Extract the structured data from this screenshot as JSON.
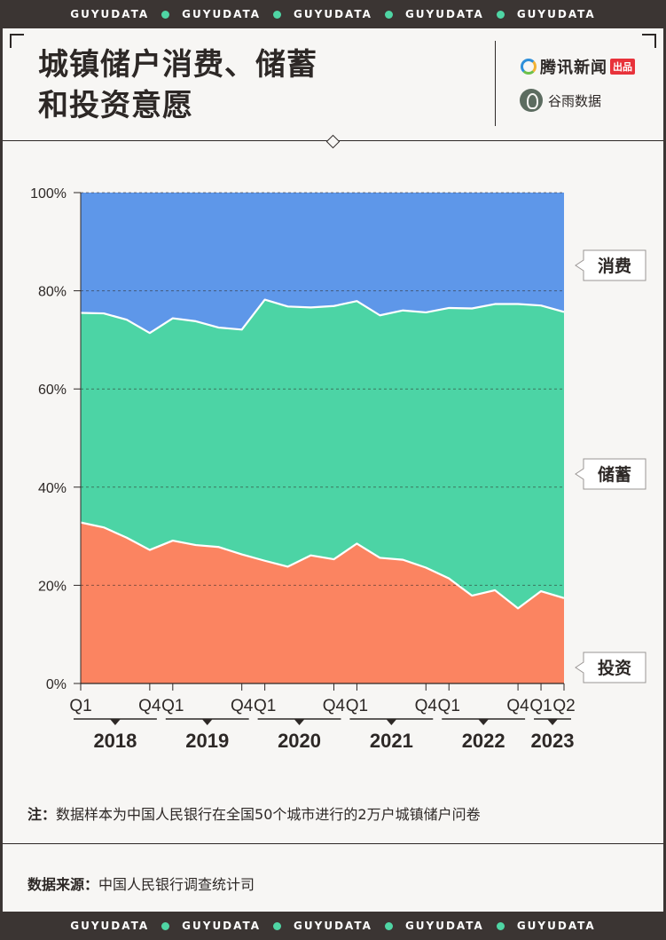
{
  "brand_band": "GUYUDATA",
  "title_lines": [
    "城镇储户消费、储蓄",
    "和投资意愿"
  ],
  "logos": {
    "tencent": "腾讯新闻",
    "tencent_tag": "出品",
    "guyu": "谷雨数据",
    "tencent_ring_colors": [
      "#2e8fd9",
      "#f2b233",
      "#6cc04a"
    ]
  },
  "chart_data": {
    "type": "area",
    "stacked": true,
    "percent": true,
    "ylim": [
      0,
      100
    ],
    "y_ticks": [
      "0%",
      "20%",
      "40%",
      "60%",
      "80%",
      "100%"
    ],
    "x_ticks": [
      "Q1",
      "Q4",
      "Q1",
      "Q4",
      "Q1",
      "Q4",
      "Q1",
      "Q4",
      "Q1",
      "Q4",
      "Q1",
      "Q2"
    ],
    "year_labels": [
      "2018",
      "2019",
      "2020",
      "2021",
      "2022",
      "2023"
    ],
    "x": [
      "2018Q1",
      "2018Q2",
      "2018Q3",
      "2018Q4",
      "2019Q1",
      "2019Q2",
      "2019Q3",
      "2019Q4",
      "2020Q1",
      "2020Q2",
      "2020Q3",
      "2020Q4",
      "2021Q1",
      "2021Q2",
      "2021Q3",
      "2021Q4",
      "2022Q1",
      "2022Q2",
      "2022Q3",
      "2022Q4",
      "2023Q1",
      "2023Q2"
    ],
    "series": [
      {
        "name": "投资",
        "color": "#fb8461",
        "values": [
          32.8,
          31.8,
          29.7,
          27.2,
          29.1,
          28.2,
          27.8,
          26.3,
          25.0,
          23.8,
          26.1,
          25.3,
          28.5,
          25.6,
          25.2,
          23.6,
          21.4,
          17.9,
          19.0,
          15.3,
          18.8,
          17.4
        ]
      },
      {
        "name": "储蓄",
        "color": "#4cd4a5",
        "values": [
          42.7,
          43.6,
          44.4,
          44.2,
          45.3,
          45.6,
          44.7,
          45.8,
          53.2,
          53.0,
          50.5,
          51.6,
          49.4,
          49.4,
          50.8,
          52.0,
          55.1,
          58.5,
          58.3,
          62.0,
          58.2,
          58.3
        ]
      },
      {
        "name": "消费",
        "color": "#5e97e9",
        "values": [
          24.5,
          24.6,
          25.9,
          28.6,
          25.6,
          26.2,
          27.5,
          27.9,
          21.8,
          23.2,
          23.4,
          23.1,
          22.1,
          25.0,
          24.0,
          24.4,
          23.5,
          23.6,
          22.7,
          22.7,
          23.0,
          24.3
        ]
      }
    ],
    "legend_position": "right-labels",
    "grid": true,
    "colors": {
      "consumption": "#5e97e9",
      "savings": "#4cd4a5",
      "investment": "#fb8461"
    }
  },
  "note": {
    "label": "注",
    "sep": "：",
    "text": "数据样本为中国人民银行在全国50个城市进行的2万户城镇储户问卷"
  },
  "source": {
    "label": "数据来源",
    "sep": "：",
    "text": "中国人民银行调查统计司"
  },
  "colors": {
    "background": "#3b3533",
    "card": "#f7f6f4",
    "accent_dot": "#4fd5a4",
    "ink": "#2d2826",
    "tencent_red": "#e8323a"
  }
}
